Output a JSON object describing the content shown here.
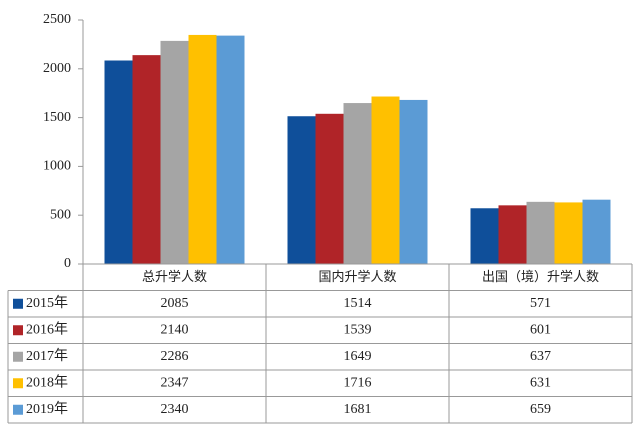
{
  "chart_data": {
    "type": "bar",
    "categories": [
      "总升学人数",
      "国内升学人数",
      "出国（境）升学人数"
    ],
    "series": [
      {
        "name": "2015年",
        "color": "#0f4f9a",
        "values": [
          2085,
          1514,
          571
        ]
      },
      {
        "name": "2016年",
        "color": "#b02428",
        "values": [
          2140,
          1539,
          601
        ]
      },
      {
        "name": "2017年",
        "color": "#a5a5a5",
        "values": [
          2286,
          1649,
          637
        ]
      },
      {
        "name": "2018年",
        "color": "#ffc000",
        "values": [
          2347,
          1716,
          631
        ]
      },
      {
        "name": "2019年",
        "color": "#5b9bd5",
        "values": [
          2340,
          1681,
          659
        ]
      }
    ],
    "ylim": [
      0,
      2500
    ],
    "yticks": [
      0,
      500,
      1000,
      1500,
      2000,
      2500
    ],
    "grid": false,
    "data_table": true
  }
}
